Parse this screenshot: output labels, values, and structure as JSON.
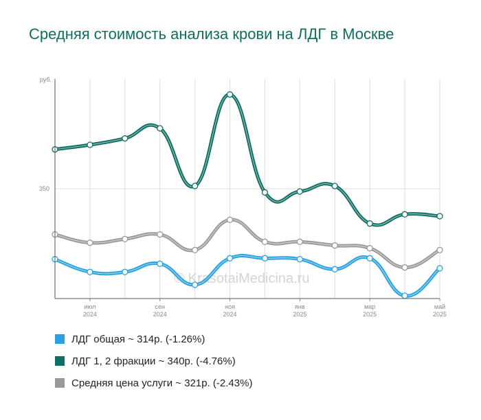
{
  "chart_data": {
    "type": "line",
    "title": "Средняя стоимость анализа крови на ЛДГ в Москве",
    "ylabel": "руб.",
    "y_tick_values": [
      350
    ],
    "y_tick_labels": [
      "350"
    ],
    "ylim": [
      230,
      470
    ],
    "x": [
      "2024-06",
      "2024-07",
      "2024-08",
      "2024-09",
      "2024-10",
      "2024-11",
      "2024-12",
      "2025-01",
      "2025-02",
      "2025-03",
      "2025-04",
      "2025-05"
    ],
    "x_tick_labels": [
      {
        "month": "июл",
        "year": "2024",
        "index": 1
      },
      {
        "month": "сен",
        "year": "2024",
        "index": 3
      },
      {
        "month": "ноя",
        "year": "2024",
        "index": 5
      },
      {
        "month": "янв",
        "year": "2025",
        "index": 7
      },
      {
        "month": "мар",
        "year": "2025",
        "index": 9
      },
      {
        "month": "май",
        "year": "2025",
        "index": 11
      }
    ],
    "series": [
      {
        "name": "ЛДГ общая ~ 314р. (-1.26%)",
        "color": "#27a1e0",
        "values": [
          273,
          259,
          259,
          268,
          245,
          274,
          274,
          273,
          262,
          274,
          233,
          263
        ]
      },
      {
        "name": "ЛДГ 1, 2 фракции ~ 340р. (-4.76%)",
        "color": "#0e6e64",
        "values": [
          393,
          398,
          405,
          416,
          353,
          453,
          346,
          347,
          353,
          312,
          322,
          320
        ]
      },
      {
        "name": "Средняя цена услуги ~ 321р. (-2.43%)",
        "color": "#999999",
        "values": [
          300,
          291,
          295,
          300,
          283,
          316,
          292,
          292,
          288,
          285,
          264,
          283
        ]
      }
    ],
    "grid": true,
    "legend_position": "bottom"
  },
  "watermark": "© KrasotaiMedicina.ru"
}
